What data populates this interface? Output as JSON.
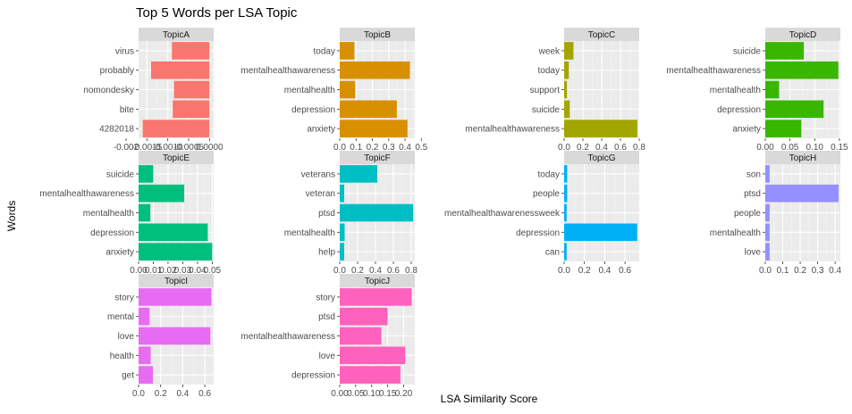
{
  "chart_data": {
    "type": "bar",
    "orientation": "horizontal",
    "facet": "wrap",
    "title": "Top 5 Words per LSA Topic",
    "xlabel": "LSA Similarity Score",
    "ylabel": "Words",
    "grid": true,
    "legend": "none",
    "panels": [
      {
        "name": "TopicA",
        "color": "#F8766D",
        "categories": [
          "virus",
          "probably",
          "nomondesky",
          "bite",
          "4282018"
        ],
        "values": [
          -0.0009,
          -0.0014,
          -0.00085,
          -0.00088,
          -0.0016
        ],
        "xlim": [
          -0.0017,
          0.0001
        ],
        "xticks": [
          -0.002,
          -0.0015,
          -0.001,
          -0.0005,
          0.0
        ],
        "xtick_labels": [
          "-0.002",
          "-0.0015",
          "-0.0010",
          "-0.0005",
          "0.0000"
        ]
      },
      {
        "name": "TopicB",
        "color": "#D89000",
        "categories": [
          "today",
          "mentalhealthawareness",
          "mentalhealth",
          "depression",
          "anxiety"
        ],
        "values": [
          0.09,
          0.43,
          0.095,
          0.35,
          0.415
        ],
        "xlim": [
          0.0,
          0.46
        ],
        "xticks": [
          0.0,
          0.1,
          0.2,
          0.3,
          0.4,
          0.5
        ],
        "xtick_labels": [
          "0.0",
          "0.1",
          "0.2",
          "0.3",
          "0.4",
          "0.5"
        ]
      },
      {
        "name": "TopicC",
        "color": "#A3A500",
        "categories": [
          "week",
          "today",
          "support",
          "suicide",
          "mentalhealthawareness"
        ],
        "values": [
          0.1,
          0.05,
          0.03,
          0.06,
          0.78
        ],
        "xlim": [
          0.0,
          0.8
        ],
        "xticks": [
          0.0,
          0.2,
          0.4,
          0.6,
          0.8
        ],
        "xtick_labels": [
          "0.0",
          "0.2",
          "0.4",
          "0.6",
          "0.8"
        ]
      },
      {
        "name": "TopicD",
        "color": "#39B600",
        "categories": [
          "suicide",
          "mentalhealthawareness",
          "mentalhealth",
          "depression",
          "anxiety"
        ],
        "values": [
          0.078,
          0.148,
          0.028,
          0.118,
          0.073
        ],
        "xlim": [
          0.0,
          0.152
        ],
        "xticks": [
          0.0,
          0.05,
          0.1,
          0.15
        ],
        "xtick_labels": [
          "0.00",
          "0.05",
          "0.10",
          "0.15"
        ]
      },
      {
        "name": "TopicE",
        "color": "#00BF7D",
        "categories": [
          "suicide",
          "mentalhealthawareness",
          "mentalhealth",
          "depression",
          "anxiety"
        ],
        "values": [
          0.01,
          0.031,
          0.008,
          0.047,
          0.05
        ],
        "xlim": [
          0.0,
          0.051
        ],
        "xticks": [
          0.0,
          0.01,
          0.02,
          0.03,
          0.04,
          0.05
        ],
        "xtick_labels": [
          "0.00",
          "0.01",
          "0.02",
          "0.03",
          "0.04",
          "0.05"
        ]
      },
      {
        "name": "TopicF",
        "color": "#00BFC4",
        "categories": [
          "veterans",
          "veteran",
          "ptsd",
          "mentalhealth",
          "help"
        ],
        "values": [
          0.42,
          0.05,
          0.82,
          0.055,
          0.05
        ],
        "xlim": [
          0.0,
          0.84
        ],
        "xticks": [
          0.0,
          0.2,
          0.4,
          0.6,
          0.8
        ],
        "xtick_labels": [
          "0.0",
          "0.2",
          "0.4",
          "0.6",
          "0.8"
        ]
      },
      {
        "name": "TopicG",
        "color": "#00B0F6",
        "categories": [
          "today",
          "people",
          "mentalhealthawarenessweek",
          "depression",
          "can"
        ],
        "values": [
          0.03,
          0.03,
          0.025,
          0.72,
          0.025
        ],
        "xlim": [
          0.0,
          0.74
        ],
        "xticks": [
          0.0,
          0.2,
          0.4,
          0.6
        ],
        "xtick_labels": [
          "0.0",
          "0.2",
          "0.4",
          "0.6"
        ]
      },
      {
        "name": "TopicH",
        "color": "#9590FF",
        "categories": [
          "son",
          "ptsd",
          "people",
          "mentalhealth",
          "love"
        ],
        "values": [
          0.025,
          0.42,
          0.025,
          0.025,
          0.025
        ],
        "xlim": [
          0.0,
          0.43
        ],
        "xticks": [
          0.0,
          0.1,
          0.2,
          0.3,
          0.4
        ],
        "xtick_labels": [
          "0.0",
          "0.1",
          "0.2",
          "0.3",
          "0.4"
        ]
      },
      {
        "name": "TopicI",
        "color": "#E76BF3",
        "categories": [
          "story",
          "mental",
          "love",
          "health",
          "get"
        ],
        "values": [
          0.66,
          0.1,
          0.65,
          0.11,
          0.13
        ],
        "xlim": [
          0.0,
          0.68
        ],
        "xticks": [
          0.0,
          0.2,
          0.4,
          0.6
        ],
        "xtick_labels": [
          "0.0",
          "0.2",
          "0.4",
          "0.6"
        ]
      },
      {
        "name": "TopicJ",
        "color": "#FF62BC",
        "categories": [
          "story",
          "ptsd",
          "mentalhealthawareness",
          "love",
          "depression"
        ],
        "values": [
          0.225,
          0.15,
          0.13,
          0.205,
          0.19
        ],
        "xlim": [
          0.0,
          0.235
        ],
        "xticks": [
          0.0,
          0.05,
          0.1,
          0.15,
          0.2
        ],
        "xtick_labels": [
          "0.00",
          "0.05",
          "0.10",
          "0.15",
          "0.20"
        ]
      }
    ]
  }
}
